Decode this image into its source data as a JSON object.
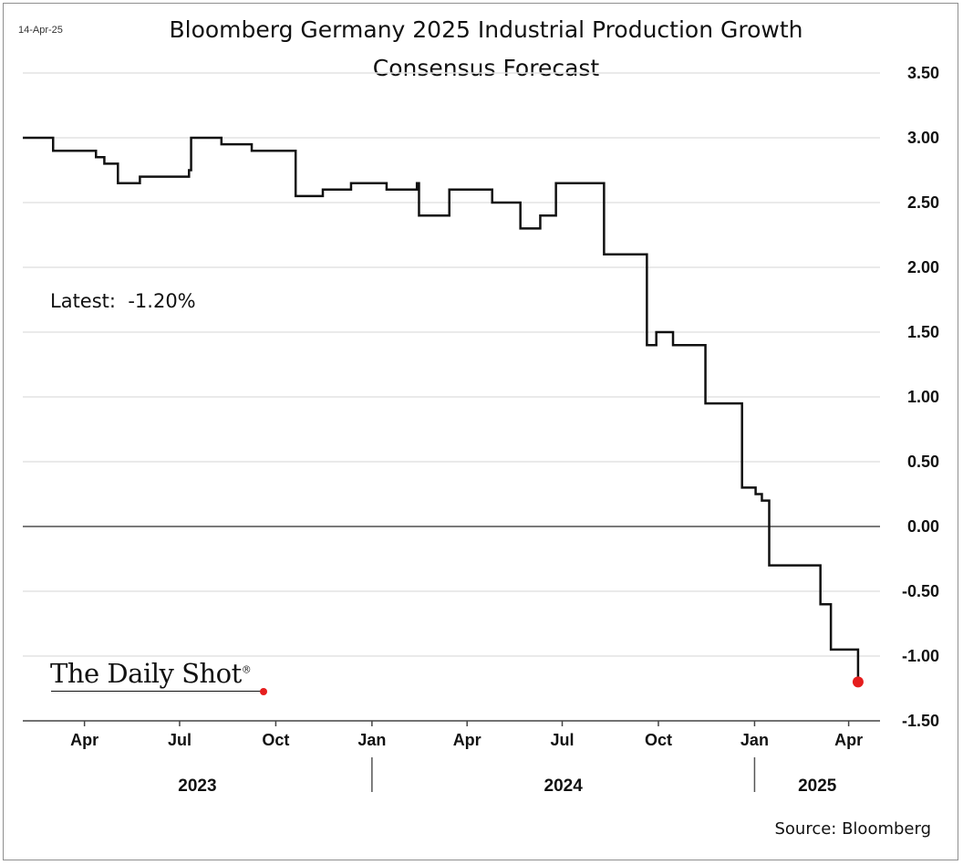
{
  "header": {
    "date": "14-Apr-25",
    "title_line1": "Bloomberg Germany 2025 Industrial Production Growth",
    "title_line2": "Consensus Forecast"
  },
  "annotation": {
    "latest_label": "Latest:",
    "latest_value": "-1.20%"
  },
  "branding": {
    "logo_text": "The Daily Shot",
    "logo_mark": "®",
    "accent_color": "#e51e1e"
  },
  "footer": {
    "source": "Source: Bloomberg"
  },
  "chart_data": {
    "type": "line",
    "title": "Bloomberg Germany 2025 Industrial Production Growth Consensus Forecast",
    "xlabel": "",
    "ylabel": "",
    "ylim": [
      -1.5,
      3.5
    ],
    "yticks": [
      3.5,
      3.0,
      2.5,
      2.0,
      1.5,
      1.0,
      0.5,
      0.0,
      -0.5,
      -1.0,
      -1.5
    ],
    "ytick_labels": [
      "3.50",
      "3.00",
      "2.50",
      "2.00",
      "1.50",
      "1.00",
      "0.50",
      "0.00",
      "-0.50",
      "-1.00",
      "-1.50"
    ],
    "xlim": [
      "2023-02-01",
      "2025-05-01"
    ],
    "xticks": [
      {
        "date": "2023-04-01",
        "label": "Apr"
      },
      {
        "date": "2023-07-01",
        "label": "Jul"
      },
      {
        "date": "2023-10-01",
        "label": "Oct"
      },
      {
        "date": "2024-01-01",
        "label": "Jan"
      },
      {
        "date": "2024-04-01",
        "label": "Apr"
      },
      {
        "date": "2024-07-01",
        "label": "Jul"
      },
      {
        "date": "2024-10-01",
        "label": "Oct"
      },
      {
        "date": "2025-01-01",
        "label": "Jan"
      },
      {
        "date": "2025-04-01",
        "label": "Apr"
      }
    ],
    "years": [
      {
        "label": "2023",
        "start": "2023-02-01",
        "end": "2024-01-01"
      },
      {
        "label": "2024",
        "start": "2024-01-01",
        "end": "2025-01-01"
      },
      {
        "label": "2025",
        "start": "2025-01-01",
        "end": "2025-05-01"
      }
    ],
    "line_color": "#111111",
    "zero_line": true,
    "series": [
      {
        "name": "Consensus Forecast",
        "step": true,
        "points": [
          [
            "2023-02-01",
            3.0
          ],
          [
            "2023-03-02",
            2.9
          ],
          [
            "2023-04-12",
            2.85
          ],
          [
            "2023-04-20",
            2.8
          ],
          [
            "2023-05-03",
            2.65
          ],
          [
            "2023-05-24",
            2.7
          ],
          [
            "2023-07-10",
            2.75
          ],
          [
            "2023-07-12",
            3.0
          ],
          [
            "2023-08-10",
            2.95
          ],
          [
            "2023-09-08",
            2.9
          ],
          [
            "2023-10-20",
            2.55
          ],
          [
            "2023-11-15",
            2.6
          ],
          [
            "2023-12-12",
            2.65
          ],
          [
            "2024-01-15",
            2.6
          ],
          [
            "2024-02-13",
            2.65
          ],
          [
            "2024-02-15",
            2.4
          ],
          [
            "2024-03-15",
            2.6
          ],
          [
            "2024-04-25",
            2.5
          ],
          [
            "2024-05-22",
            2.3
          ],
          [
            "2024-06-10",
            2.4
          ],
          [
            "2024-06-25",
            2.65
          ],
          [
            "2024-08-10",
            2.1
          ],
          [
            "2024-09-20",
            1.4
          ],
          [
            "2024-09-29",
            1.5
          ],
          [
            "2024-10-15",
            1.4
          ],
          [
            "2024-11-15",
            0.95
          ],
          [
            "2024-12-20",
            0.3
          ],
          [
            "2025-01-02",
            0.25
          ],
          [
            "2025-01-08",
            0.2
          ],
          [
            "2025-01-15",
            -0.3
          ],
          [
            "2025-03-05",
            -0.6
          ],
          [
            "2025-03-15",
            -0.95
          ],
          [
            "2025-04-10",
            -1.2
          ]
        ],
        "last_point": {
          "date": "2025-04-10",
          "value": -1.2,
          "marker_color": "#e51e1e"
        }
      }
    ]
  }
}
